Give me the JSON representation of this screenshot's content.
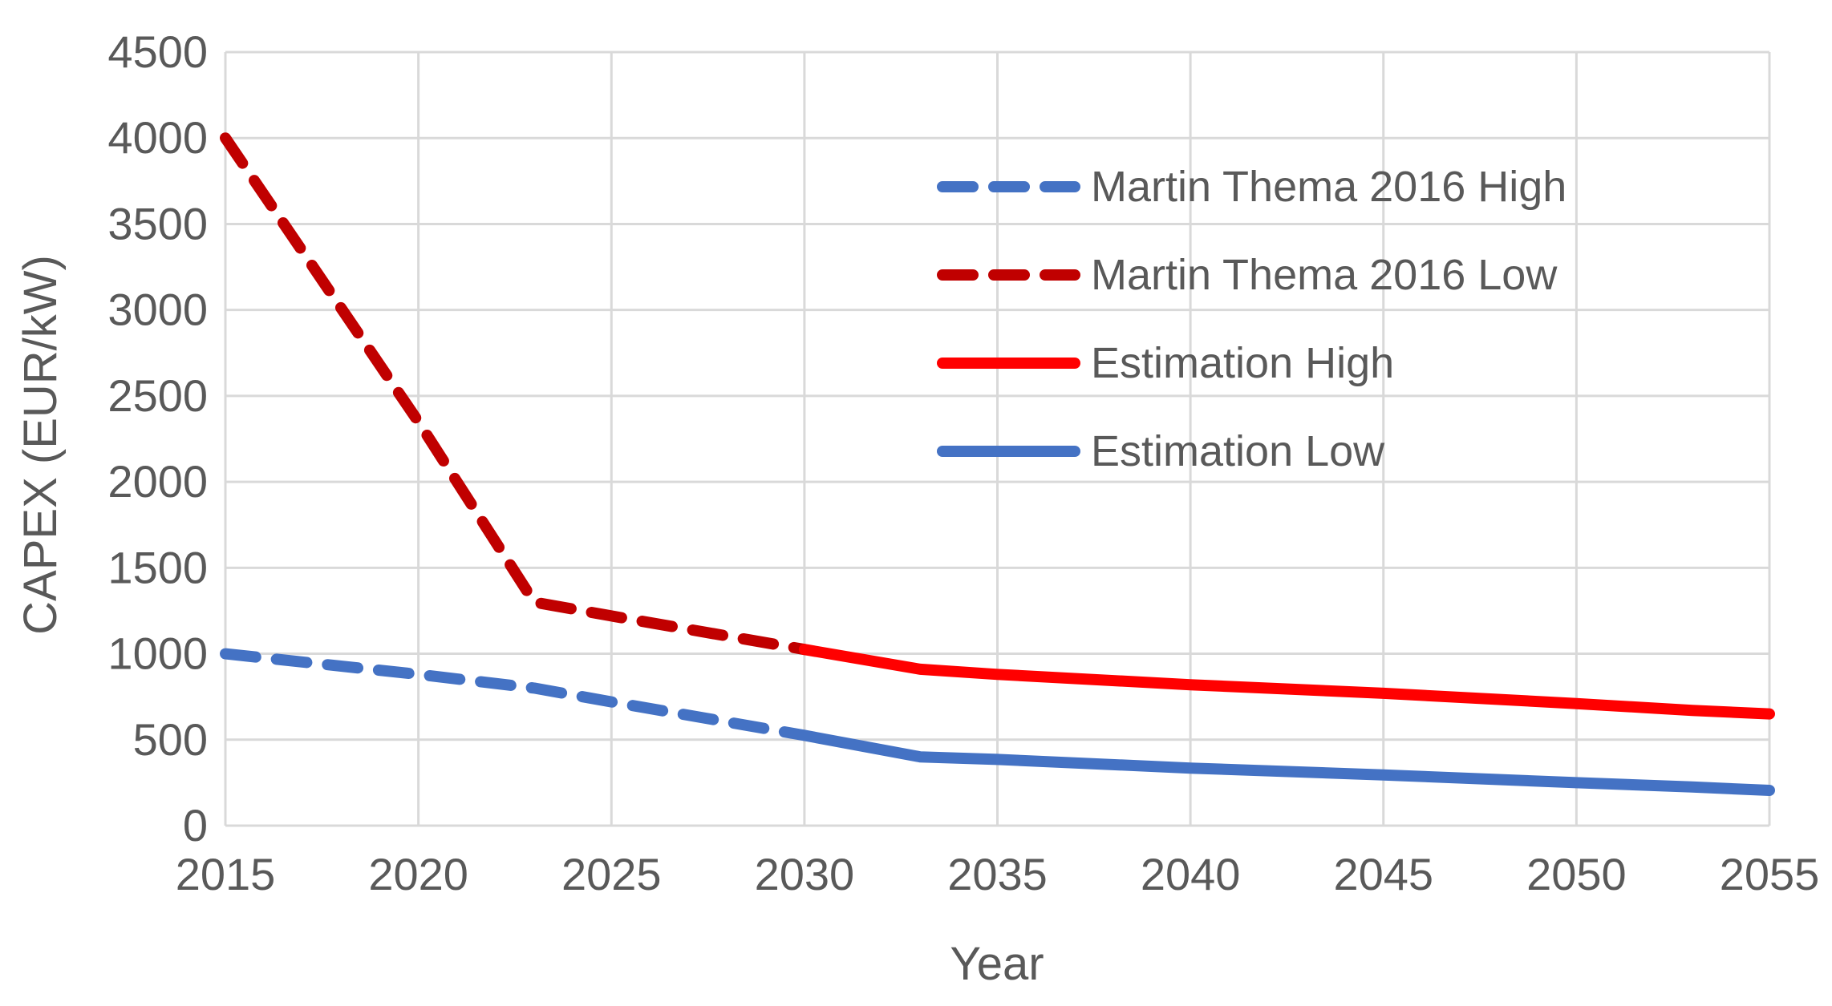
{
  "chart_data": {
    "type": "line",
    "title": "",
    "xlabel": "Year",
    "ylabel": "CAPEX (EUR/kW)",
    "xlim": [
      2015,
      2055
    ],
    "ylim": [
      0,
      4500
    ],
    "x_ticks": [
      2015,
      2020,
      2025,
      2030,
      2035,
      2040,
      2045,
      2050,
      2055
    ],
    "y_ticks": [
      0,
      500,
      1000,
      1500,
      2000,
      2500,
      3000,
      3500,
      4000,
      4500
    ],
    "grid": true,
    "legend_position": "upper-right inside plot",
    "series": [
      {
        "name": "Martin Thema 2016 High",
        "color": "#4472C4",
        "style": "dashed",
        "x": [
          2015,
          2020,
          2023,
          2025,
          2030
        ],
        "y": [
          1000,
          880,
          800,
          720,
          525
        ]
      },
      {
        "name": "Martin Thema 2016 Low",
        "color": "#C00000",
        "style": "dashed",
        "x": [
          2015,
          2020,
          2023,
          2025,
          2030
        ],
        "y": [
          4000,
          2350,
          1300,
          1220,
          1025
        ]
      },
      {
        "name": "Estimation High",
        "color": "#FF0000",
        "style": "solid",
        "x": [
          2030,
          2033,
          2035,
          2040,
          2045,
          2050,
          2053,
          2055
        ],
        "y": [
          1025,
          910,
          880,
          820,
          770,
          710,
          670,
          650
        ]
      },
      {
        "name": "Estimation Low",
        "color": "#4472C4",
        "style": "solid",
        "x": [
          2030,
          2033,
          2035,
          2040,
          2045,
          2050,
          2053,
          2055
        ],
        "y": [
          525,
          400,
          385,
          335,
          295,
          250,
          225,
          205
        ]
      }
    ]
  }
}
